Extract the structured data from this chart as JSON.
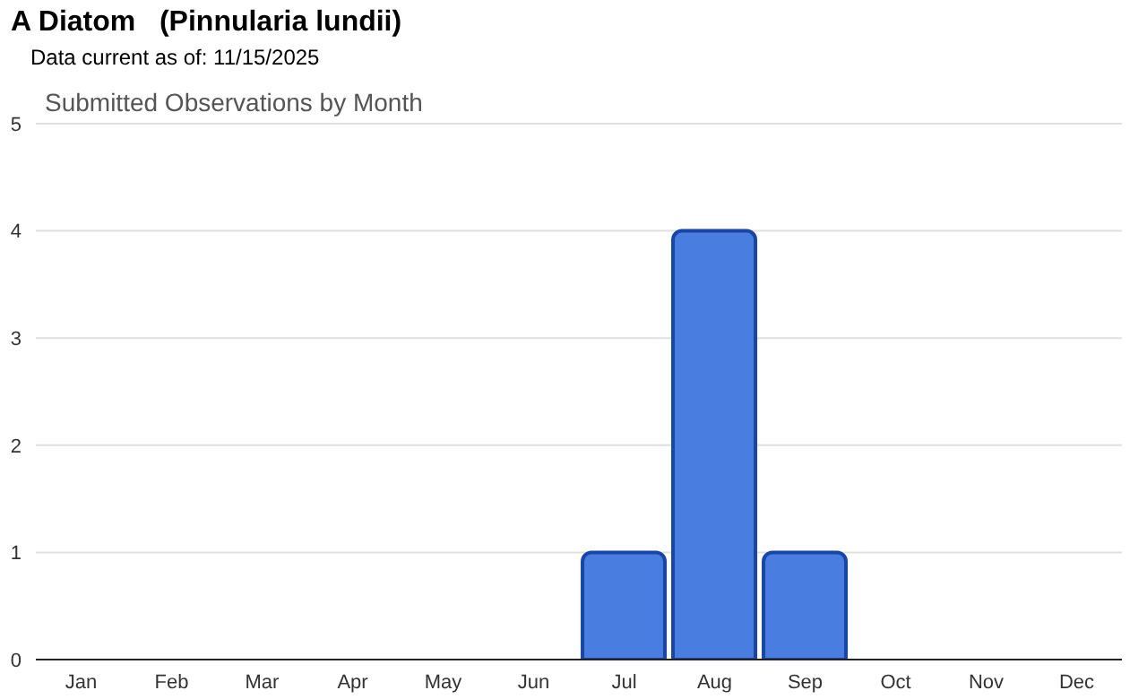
{
  "chart_data": {
    "type": "bar",
    "title": "A Diatom   (Pinnularia lundii)",
    "subtitle": "Data current as of: 11/15/2025",
    "annotations": [
      "Submitted Observations by Month"
    ],
    "categories": [
      "Jan",
      "Feb",
      "Mar",
      "Apr",
      "May",
      "Jun",
      "Jul",
      "Aug",
      "Sep",
      "Oct",
      "Nov",
      "Dec"
    ],
    "values": [
      0,
      0,
      0,
      0,
      0,
      0,
      1,
      4,
      1,
      0,
      0,
      0
    ],
    "color": "#4a7de0",
    "ylim": [
      0,
      5
    ],
    "yticks": [
      0,
      1,
      2,
      3,
      4,
      5
    ],
    "grid": "y",
    "legend": false
  }
}
